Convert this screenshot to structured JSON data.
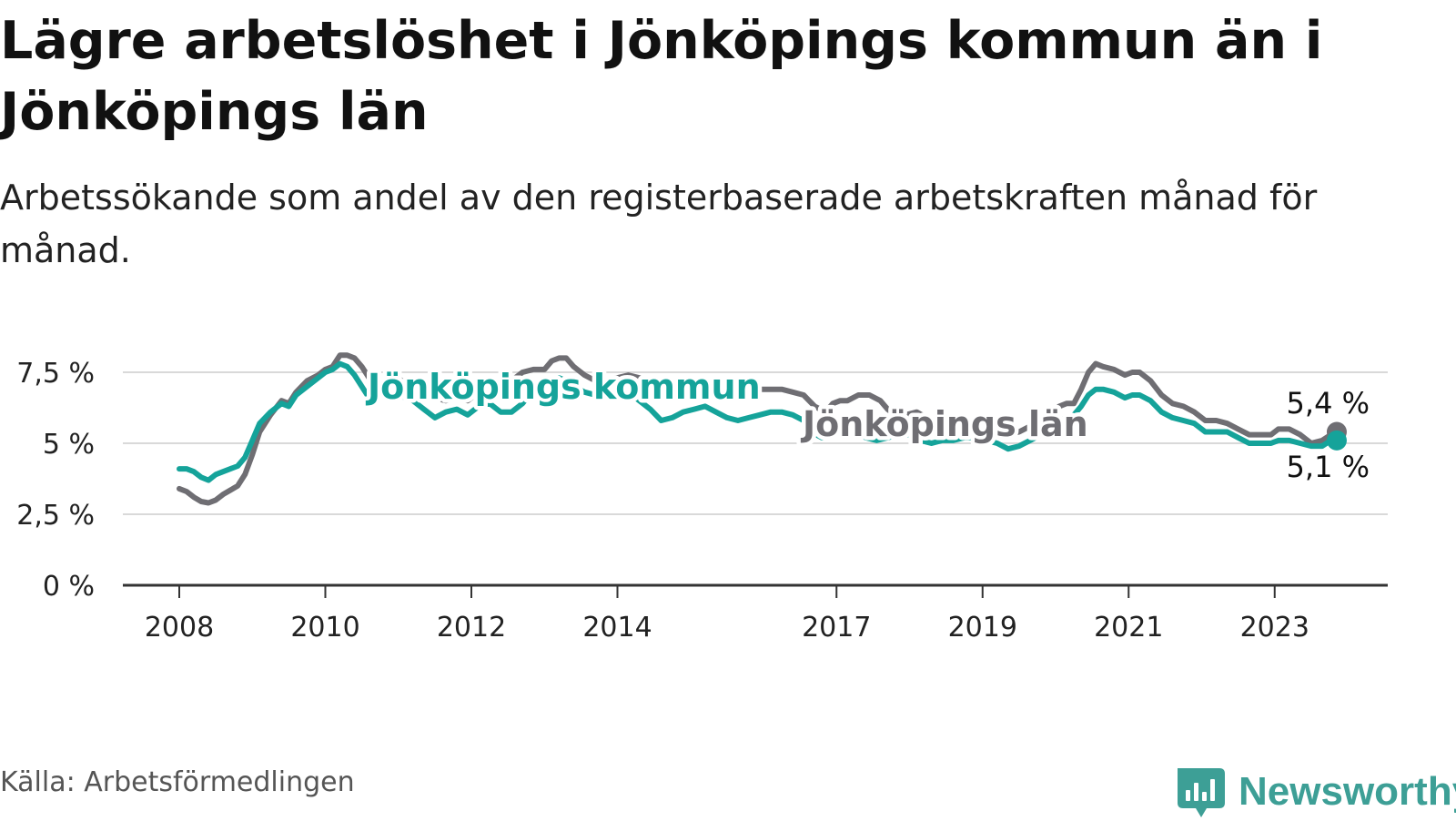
{
  "header": {
    "title": "Lägre arbetslöshet i Jönköpings kommun än i Jönköpings län",
    "subtitle": "Arbetssökande som andel av den registerbaserade arbetskraften månad för månad."
  },
  "footer": {
    "source": "Källa: Arbetsförmedlingen",
    "brand": "Newsworthy",
    "brand_icon": "newsworthy-logo-icon"
  },
  "colors": {
    "kommun": "#15a39a",
    "lan": "#6f6e73",
    "grid": "#d9d9d9",
    "axis": "#333333",
    "brand": "#3d9f96"
  },
  "chart_data": {
    "type": "line",
    "x_unit": "year",
    "xlim": [
      2008,
      2024.3
    ],
    "ylim": [
      0,
      7.5
    ],
    "y_ticks": [
      0,
      2.5,
      5,
      7.5
    ],
    "y_tick_labels": [
      "0 %",
      "2,5 %",
      "5 %",
      "7,5 %"
    ],
    "x_ticks": [
      2008,
      2010,
      2012,
      2014,
      2017,
      2019,
      2021,
      2023
    ],
    "x_tick_labels": [
      "2008",
      "2010",
      "2012",
      "2014",
      "2017",
      "2019",
      "2021",
      "2023"
    ],
    "grid": "horizontal",
    "series": [
      {
        "name": "Jönköpings län",
        "color_key": "lan",
        "end_label": "5,4 %",
        "points": [
          [
            2008.0,
            3.4
          ],
          [
            2008.1,
            3.3
          ],
          [
            2008.2,
            3.1
          ],
          [
            2008.3,
            2.95
          ],
          [
            2008.4,
            2.9
          ],
          [
            2008.5,
            3.0
          ],
          [
            2008.6,
            3.2
          ],
          [
            2008.7,
            3.35
          ],
          [
            2008.8,
            3.5
          ],
          [
            2008.9,
            3.9
          ],
          [
            2009.0,
            4.6
          ],
          [
            2009.1,
            5.4
          ],
          [
            2009.25,
            6.0
          ],
          [
            2009.4,
            6.5
          ],
          [
            2009.5,
            6.4
          ],
          [
            2009.6,
            6.8
          ],
          [
            2009.75,
            7.2
          ],
          [
            2009.9,
            7.4
          ],
          [
            2010.0,
            7.6
          ],
          [
            2010.1,
            7.7
          ],
          [
            2010.2,
            8.1
          ],
          [
            2010.3,
            8.1
          ],
          [
            2010.4,
            8.0
          ],
          [
            2010.5,
            7.7
          ],
          [
            2010.6,
            7.3
          ],
          [
            2010.7,
            7.0
          ],
          [
            2010.8,
            7.1
          ],
          [
            2010.9,
            7.4
          ],
          [
            2011.05,
            7.2
          ],
          [
            2011.2,
            7.0
          ],
          [
            2011.35,
            6.8
          ],
          [
            2011.5,
            6.6
          ],
          [
            2011.65,
            6.5
          ],
          [
            2011.8,
            6.6
          ],
          [
            2011.95,
            6.5
          ],
          [
            2012.1,
            6.8
          ],
          [
            2012.25,
            6.9
          ],
          [
            2012.4,
            7.1
          ],
          [
            2012.55,
            7.2
          ],
          [
            2012.7,
            7.5
          ],
          [
            2012.85,
            7.6
          ],
          [
            2013.0,
            7.6
          ],
          [
            2013.1,
            7.9
          ],
          [
            2013.2,
            8.0
          ],
          [
            2013.3,
            8.0
          ],
          [
            2013.4,
            7.7
          ],
          [
            2013.55,
            7.4
          ],
          [
            2013.7,
            7.2
          ],
          [
            2013.85,
            7.2
          ],
          [
            2014.0,
            7.3
          ],
          [
            2014.15,
            7.4
          ],
          [
            2014.3,
            7.3
          ],
          [
            2014.45,
            7.1
          ],
          [
            2014.6,
            6.9
          ],
          [
            2014.75,
            6.8
          ],
          [
            2014.9,
            6.9
          ],
          [
            2015.05,
            7.0
          ],
          [
            2015.2,
            7.1
          ],
          [
            2015.35,
            6.8
          ],
          [
            2015.5,
            6.6
          ],
          [
            2015.65,
            6.7
          ],
          [
            2015.8,
            6.8
          ],
          [
            2015.95,
            6.9
          ],
          [
            2016.1,
            6.9
          ],
          [
            2016.25,
            6.9
          ],
          [
            2016.4,
            6.8
          ],
          [
            2016.55,
            6.7
          ],
          [
            2016.7,
            6.3
          ],
          [
            2016.85,
            6.1
          ],
          [
            2016.95,
            6.4
          ],
          [
            2017.05,
            6.5
          ],
          [
            2017.15,
            6.5
          ],
          [
            2017.3,
            6.7
          ],
          [
            2017.45,
            6.7
          ],
          [
            2017.6,
            6.5
          ],
          [
            2017.7,
            6.2
          ],
          [
            2017.8,
            6.0
          ],
          [
            2017.95,
            6.0
          ],
          [
            2018.1,
            6.1
          ],
          [
            2018.3,
            5.8
          ],
          [
            2018.45,
            5.6
          ],
          [
            2018.6,
            5.5
          ],
          [
            2018.75,
            5.6
          ],
          [
            2018.9,
            5.5
          ],
          [
            2019.05,
            5.6
          ],
          [
            2019.2,
            5.5
          ],
          [
            2019.35,
            5.3
          ],
          [
            2019.5,
            5.4
          ],
          [
            2019.65,
            5.6
          ],
          [
            2019.8,
            5.8
          ],
          [
            2019.95,
            6.1
          ],
          [
            2020.05,
            6.3
          ],
          [
            2020.15,
            6.4
          ],
          [
            2020.25,
            6.4
          ],
          [
            2020.35,
            6.9
          ],
          [
            2020.45,
            7.5
          ],
          [
            2020.55,
            7.8
          ],
          [
            2020.65,
            7.7
          ],
          [
            2020.8,
            7.6
          ],
          [
            2020.95,
            7.4
          ],
          [
            2021.05,
            7.5
          ],
          [
            2021.15,
            7.5
          ],
          [
            2021.3,
            7.2
          ],
          [
            2021.45,
            6.7
          ],
          [
            2021.6,
            6.4
          ],
          [
            2021.75,
            6.3
          ],
          [
            2021.9,
            6.1
          ],
          [
            2022.05,
            5.8
          ],
          [
            2022.2,
            5.8
          ],
          [
            2022.35,
            5.7
          ],
          [
            2022.5,
            5.5
          ],
          [
            2022.65,
            5.3
          ],
          [
            2022.8,
            5.3
          ],
          [
            2022.95,
            5.3
          ],
          [
            2023.05,
            5.5
          ],
          [
            2023.2,
            5.5
          ],
          [
            2023.35,
            5.3
          ],
          [
            2023.5,
            5.0
          ],
          [
            2023.65,
            5.1
          ],
          [
            2023.77,
            5.3
          ],
          [
            2023.85,
            5.4
          ]
        ]
      },
      {
        "name": "Jönköpings kommun",
        "color_key": "kommun",
        "end_label": "5,1 %",
        "points": [
          [
            2008.0,
            4.1
          ],
          [
            2008.1,
            4.1
          ],
          [
            2008.2,
            4.0
          ],
          [
            2008.3,
            3.8
          ],
          [
            2008.4,
            3.7
          ],
          [
            2008.5,
            3.9
          ],
          [
            2008.6,
            4.0
          ],
          [
            2008.7,
            4.1
          ],
          [
            2008.8,
            4.2
          ],
          [
            2008.9,
            4.5
          ],
          [
            2009.0,
            5.1
          ],
          [
            2009.1,
            5.7
          ],
          [
            2009.25,
            6.1
          ],
          [
            2009.4,
            6.4
          ],
          [
            2009.5,
            6.3
          ],
          [
            2009.6,
            6.7
          ],
          [
            2009.75,
            7.0
          ],
          [
            2009.9,
            7.3
          ],
          [
            2010.0,
            7.5
          ],
          [
            2010.1,
            7.6
          ],
          [
            2010.2,
            7.8
          ],
          [
            2010.3,
            7.7
          ],
          [
            2010.4,
            7.4
          ],
          [
            2010.5,
            7.0
          ],
          [
            2010.6,
            6.6
          ],
          [
            2010.7,
            6.6
          ],
          [
            2010.8,
            6.8
          ],
          [
            2011.0,
            6.7
          ],
          [
            2011.2,
            6.5
          ],
          [
            2011.35,
            6.2
          ],
          [
            2011.5,
            5.9
          ],
          [
            2011.65,
            6.1
          ],
          [
            2011.8,
            6.2
          ],
          [
            2011.95,
            6.0
          ],
          [
            2012.1,
            6.3
          ],
          [
            2012.25,
            6.4
          ],
          [
            2012.4,
            6.1
          ],
          [
            2012.55,
            6.1
          ],
          [
            2012.7,
            6.4
          ],
          [
            2012.85,
            6.9
          ],
          [
            2013.0,
            7.0
          ],
          [
            2013.1,
            7.2
          ],
          [
            2013.2,
            7.3
          ],
          [
            2013.3,
            7.2
          ],
          [
            2013.4,
            7.0
          ],
          [
            2013.55,
            6.8
          ],
          [
            2013.7,
            6.7
          ],
          [
            2013.85,
            6.7
          ],
          [
            2014.0,
            6.8
          ],
          [
            2014.15,
            6.8
          ],
          [
            2014.3,
            6.5
          ],
          [
            2014.45,
            6.2
          ],
          [
            2014.6,
            5.8
          ],
          [
            2014.75,
            5.9
          ],
          [
            2014.9,
            6.1
          ],
          [
            2015.05,
            6.2
          ],
          [
            2015.2,
            6.3
          ],
          [
            2015.35,
            6.1
          ],
          [
            2015.5,
            5.9
          ],
          [
            2015.65,
            5.8
          ],
          [
            2015.8,
            5.9
          ],
          [
            2015.95,
            6.0
          ],
          [
            2016.1,
            6.1
          ],
          [
            2016.25,
            6.1
          ],
          [
            2016.4,
            6.0
          ],
          [
            2016.55,
            5.8
          ],
          [
            2016.65,
            5.4
          ],
          [
            2016.8,
            5.2
          ],
          [
            2016.95,
            5.3
          ],
          [
            2017.1,
            5.4
          ],
          [
            2017.25,
            5.4
          ],
          [
            2017.4,
            5.2
          ],
          [
            2017.55,
            5.1
          ],
          [
            2017.7,
            5.2
          ],
          [
            2017.85,
            5.3
          ],
          [
            2018.0,
            5.3
          ],
          [
            2018.15,
            5.1
          ],
          [
            2018.3,
            5.0
          ],
          [
            2018.45,
            5.1
          ],
          [
            2018.6,
            5.1
          ],
          [
            2018.75,
            5.2
          ],
          [
            2018.9,
            5.2
          ],
          [
            2019.05,
            5.1
          ],
          [
            2019.2,
            5.0
          ],
          [
            2019.35,
            4.8
          ],
          [
            2019.5,
            4.9
          ],
          [
            2019.65,
            5.1
          ],
          [
            2019.8,
            5.3
          ],
          [
            2019.95,
            5.6
          ],
          [
            2020.05,
            5.8
          ],
          [
            2020.15,
            5.9
          ],
          [
            2020.25,
            6.0
          ],
          [
            2020.35,
            6.3
          ],
          [
            2020.45,
            6.7
          ],
          [
            2020.55,
            6.9
          ],
          [
            2020.65,
            6.9
          ],
          [
            2020.8,
            6.8
          ],
          [
            2020.95,
            6.6
          ],
          [
            2021.05,
            6.7
          ],
          [
            2021.15,
            6.7
          ],
          [
            2021.3,
            6.5
          ],
          [
            2021.45,
            6.1
          ],
          [
            2021.6,
            5.9
          ],
          [
            2021.75,
            5.8
          ],
          [
            2021.9,
            5.7
          ],
          [
            2022.05,
            5.4
          ],
          [
            2022.2,
            5.4
          ],
          [
            2022.35,
            5.4
          ],
          [
            2022.5,
            5.2
          ],
          [
            2022.65,
            5.0
          ],
          [
            2022.8,
            5.0
          ],
          [
            2022.95,
            5.0
          ],
          [
            2023.05,
            5.1
          ],
          [
            2023.2,
            5.1
          ],
          [
            2023.35,
            5.0
          ],
          [
            2023.5,
            4.9
          ],
          [
            2023.65,
            4.9
          ],
          [
            2023.77,
            5.1
          ],
          [
            2023.85,
            5.1
          ]
        ]
      }
    ]
  }
}
